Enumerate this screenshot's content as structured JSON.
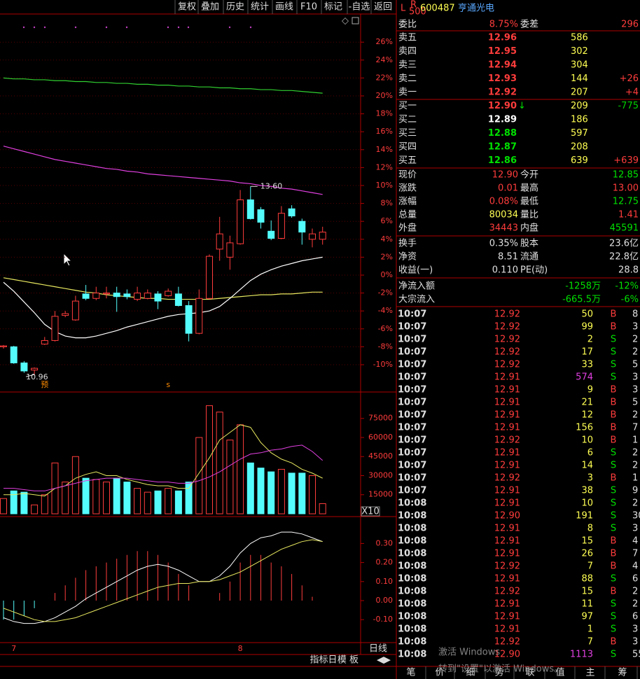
{
  "toolbar": {
    "buttons": [
      "复权",
      "叠加",
      "历史",
      "统计",
      "画线",
      "F10",
      "标记",
      "-自选",
      "返回"
    ]
  },
  "header": {
    "market": "L",
    "board_top": "R",
    "board_bottom": "500",
    "code": "600487",
    "name": "亨通光电"
  },
  "quote": {
    "ratio": [
      "委比",
      "8.75%",
      "委差",
      "296"
    ],
    "order_book": [
      {
        "label": "卖五",
        "price": "12.96",
        "volume": "586",
        "color": "#ff3c3c"
      },
      {
        "label": "卖四",
        "price": "12.95",
        "volume": "302",
        "color": "#ff3c3c"
      },
      {
        "label": "卖三",
        "price": "12.94",
        "volume": "304",
        "color": "#ff3c3c"
      },
      {
        "label": "卖二",
        "price": "12.93",
        "volume": "144",
        "change": "+26",
        "color": "#ff3c3c",
        "change_color": "#ff3c3c"
      },
      {
        "label": "卖一",
        "price": "12.92",
        "volume": "207",
        "change": "+4",
        "color": "#ff3c3c",
        "change_color": "#ff3c3c"
      },
      {
        "label": "买一",
        "price": "12.90",
        "mark": "↓",
        "volume": "209",
        "change": "-775",
        "color": "#ff3c3c",
        "change_color": "#00d000"
      },
      {
        "label": "买二",
        "price": "12.89",
        "volume": "186",
        "color": "#ffffff"
      },
      {
        "label": "买三",
        "price": "12.88",
        "volume": "597",
        "color": "#00e000"
      },
      {
        "label": "买四",
        "price": "12.87",
        "volume": "208",
        "color": "#00e000"
      },
      {
        "label": "买五",
        "price": "12.86",
        "volume": "639",
        "change": "+639",
        "color": "#00e000",
        "change_color": "#ff3c3c"
      }
    ],
    "stats": [
      {
        "cells": [
          "现价",
          "12.90",
          "今开",
          "12.85"
        ],
        "colors": [
          "#ff3c3c",
          "#00e000"
        ]
      },
      {
        "cells": [
          "涨跌",
          "0.01",
          "最高",
          "13.00"
        ],
        "colors": [
          "#ff3c3c",
          "#ff3c3c"
        ]
      },
      {
        "cells": [
          "涨幅",
          "0.08%",
          "最低",
          "12.75"
        ],
        "colors": [
          "#ff3c3c",
          "#00e000"
        ]
      },
      {
        "cells": [
          "总量",
          "80034",
          "量比",
          "1.41"
        ],
        "colors": [
          "#ffff54",
          "#ff3c3c"
        ]
      },
      {
        "cells": [
          "外盘",
          "34443",
          "内盘",
          "45591"
        ],
        "colors": [
          "#ff3c3c",
          "#00e000"
        ]
      },
      {
        "cells": [
          "换手",
          "0.35%",
          "股本",
          "23.6亿"
        ],
        "colors": [
          "#e0e0e0",
          "#e0e0e0"
        ]
      },
      {
        "cells": [
          "净资",
          "8.51",
          "流通",
          "22.8亿"
        ],
        "colors": [
          "#e0e0e0",
          "#e0e0e0"
        ]
      },
      {
        "cells": [
          "收益(一)",
          "0.110",
          "PE(动)",
          "28.8"
        ],
        "colors": [
          "#e0e0e0",
          "#e0e0e0"
        ]
      }
    ],
    "flow": [
      [
        "净流入额",
        "-1258万",
        "-12%"
      ],
      [
        "大宗流入",
        "-665.5万",
        "-6%"
      ]
    ]
  },
  "trades": [
    [
      "10:07",
      "12.92",
      "50",
      "B",
      "8"
    ],
    [
      "10:07",
      "12.92",
      "99",
      "B",
      "3"
    ],
    [
      "10:07",
      "12.92",
      "2",
      "S",
      "2"
    ],
    [
      "10:07",
      "12.92",
      "17",
      "S",
      "2"
    ],
    [
      "10:07",
      "12.92",
      "33",
      "S",
      "5"
    ],
    [
      "10:07",
      "12.91",
      "574",
      "S",
      "3"
    ],
    [
      "10:07",
      "12.91",
      "9",
      "B",
      "3"
    ],
    [
      "10:07",
      "12.91",
      "21",
      "B",
      "5"
    ],
    [
      "10:07",
      "12.91",
      "12",
      "B",
      "2"
    ],
    [
      "10:07",
      "12.91",
      "156",
      "B",
      "7"
    ],
    [
      "10:07",
      "12.92",
      "10",
      "B",
      "1"
    ],
    [
      "10:07",
      "12.91",
      "6",
      "S",
      "2"
    ],
    [
      "10:07",
      "12.91",
      "14",
      "S",
      "2"
    ],
    [
      "10:07",
      "12.92",
      "3",
      "B",
      "1"
    ],
    [
      "10:07",
      "12.91",
      "38",
      "S",
      "9"
    ],
    [
      "10:08",
      "12.91",
      "10",
      "S",
      "2"
    ],
    [
      "10:08",
      "12.90",
      "191",
      "S",
      "30"
    ],
    [
      "10:08",
      "12.91",
      "8",
      "S",
      "3"
    ],
    [
      "10:08",
      "12.91",
      "15",
      "B",
      "4"
    ],
    [
      "10:08",
      "12.91",
      "26",
      "B",
      "7"
    ],
    [
      "10:08",
      "12.92",
      "7",
      "B",
      "4"
    ],
    [
      "10:08",
      "12.91",
      "88",
      "S",
      "6"
    ],
    [
      "10:08",
      "12.92",
      "15",
      "B",
      "2"
    ],
    [
      "10:08",
      "12.91",
      "11",
      "S",
      "2"
    ],
    [
      "10:08",
      "12.91",
      "97",
      "S",
      "6"
    ],
    [
      "10:08",
      "12.91",
      "1",
      "S",
      "3"
    ],
    [
      "10:08",
      "12.92",
      "7",
      "B",
      "3"
    ],
    [
      "10:08",
      "12.90",
      "1113",
      "S",
      "55"
    ]
  ],
  "big_trade_color": "#e040e0",
  "big_trades": [
    5,
    27
  ],
  "price_chart": {
    "up_color": "#ff3c3c",
    "down_color": "#54fcfc",
    "yticks": [
      {
        "value": -10,
        "label": "-10%"
      },
      {
        "value": -8,
        "label": "-8%"
      },
      {
        "value": -6,
        "label": "-6%"
      },
      {
        "value": -4,
        "label": "-4%"
      },
      {
        "value": -2,
        "label": "-2%"
      },
      {
        "value": 0,
        "label": "0%"
      },
      {
        "value": 2,
        "label": "2%"
      },
      {
        "value": 4,
        "label": "4%"
      },
      {
        "value": 6,
        "label": "6%"
      },
      {
        "value": 8,
        "label": "8%"
      },
      {
        "value": 10,
        "label": "10%"
      },
      {
        "value": 12,
        "label": "12%"
      },
      {
        "value": 14,
        "label": "14%"
      },
      {
        "value": 16,
        "label": "16%"
      },
      {
        "value": 18,
        "label": "18%"
      },
      {
        "value": 20,
        "label": "20%"
      },
      {
        "value": 22,
        "label": "22%"
      },
      {
        "value": 24,
        "label": "24%"
      },
      {
        "value": 26,
        "label": "26%"
      }
    ],
    "candles": [
      {
        "open": -8.0,
        "close": -7.9,
        "high": -7.8,
        "low": -8.2
      },
      {
        "open": -8.0,
        "close": -9.8,
        "high": -7.9,
        "low": -9.9,
        "x_label": "7"
      },
      {
        "open": -9.8,
        "close": -10.7,
        "high": -9.6,
        "low": -10.9
      },
      {
        "open": -10.6,
        "close": -10.4,
        "high": -10.3,
        "low": -11.1,
        "low_label": "10.96"
      },
      {
        "open": -7.7,
        "close": -7.3,
        "high": -6.9,
        "low": -7.8,
        "marker": "预"
      },
      {
        "open": -7.3,
        "close": -4.6,
        "high": -4.0,
        "low": -7.4
      },
      {
        "open": -4.5,
        "close": -4.3,
        "high": -4.0,
        "low": -4.7
      },
      {
        "open": -5.0,
        "close": -2.9,
        "high": -2.3,
        "low": -5.1
      },
      {
        "open": -2.1,
        "close": -2.6,
        "high": -1.1,
        "low": -2.8
      },
      {
        "open": -2.6,
        "close": -2.0,
        "high": -1.3,
        "low": -2.8
      },
      {
        "open": -2.1,
        "close": -2.0,
        "high": -1.3,
        "low": -2.6
      },
      {
        "open": -2.0,
        "close": -2.4,
        "high": -1.3,
        "low": -4.1
      },
      {
        "open": -2.1,
        "close": -2.4,
        "high": -1.6,
        "low": -2.7
      },
      {
        "open": -2.7,
        "close": -2.0,
        "high": -1.3,
        "low": -2.9
      },
      {
        "open": -2.6,
        "close": -2.0,
        "high": -1.6,
        "low": -2.7
      },
      {
        "open": -2.1,
        "close": -2.9,
        "high": -1.8,
        "low": -3.8
      },
      {
        "open": -2.3,
        "close": -1.8,
        "high": -1.5,
        "low": -2.4,
        "marker": "s"
      },
      {
        "open": -2.1,
        "close": -3.4,
        "high": -1.3,
        "low": -3.5
      },
      {
        "open": -3.4,
        "close": -6.5,
        "high": -2.9,
        "low": -7.4
      },
      {
        "open": -6.5,
        "close": -2.6,
        "high": -1.6,
        "low": -6.6
      },
      {
        "open": -2.6,
        "close": 2.1,
        "high": 2.3,
        "low": -2.7
      },
      {
        "open": 2.9,
        "close": 4.6,
        "high": 6.5,
        "low": 1.6
      },
      {
        "open": 2.0,
        "close": 3.6,
        "high": 4.4,
        "low": 0.6
      },
      {
        "open": 3.5,
        "close": 8.4,
        "high": 9.5,
        "low": 3.4,
        "x_label": "8"
      },
      {
        "open": 8.4,
        "close": 6.3,
        "high": 9.9,
        "low": 6.2,
        "high_label": "13.60"
      },
      {
        "open": 7.3,
        "close": 5.9,
        "high": 7.6,
        "low": 5.2
      },
      {
        "open": 4.9,
        "close": 4.1,
        "high": 6.1,
        "low": 3.9
      },
      {
        "open": 4.1,
        "close": 6.9,
        "high": 7.7,
        "low": 4.0
      },
      {
        "open": 7.4,
        "close": 6.6,
        "high": 7.8,
        "low": 6.4
      },
      {
        "open": 6.0,
        "close": 4.8,
        "high": 6.3,
        "low": 3.4
      },
      {
        "open": 4.0,
        "close": 4.6,
        "high": 5.2,
        "low": 3.1
      },
      {
        "open": 4.0,
        "close": 4.8,
        "high": 5.4,
        "low": 3.4
      }
    ],
    "ma_lines": [
      {
        "color": "#30d030",
        "values": [
          22.0,
          21.9,
          21.9,
          21.8,
          21.8,
          21.7,
          21.7,
          21.6,
          21.6,
          21.5,
          21.5,
          21.4,
          21.4,
          21.3,
          21.3,
          21.2,
          21.2,
          21.1,
          21.1,
          21.0,
          21.0,
          20.9,
          20.9,
          20.8,
          20.8,
          20.7,
          20.7,
          20.6,
          20.6,
          20.5,
          20.4,
          20.3
        ]
      },
      {
        "color": "#e040e0",
        "values": [
          14.4,
          14.1,
          13.8,
          13.5,
          13.2,
          12.9,
          12.7,
          12.5,
          12.3,
          12.1,
          11.9,
          11.8,
          11.6,
          11.5,
          11.3,
          11.2,
          11.1,
          11.0,
          10.9,
          10.8,
          10.7,
          10.6,
          10.5,
          10.3,
          10.2,
          10.0,
          9.9,
          9.7,
          9.6,
          9.4,
          9.2,
          9.0
        ]
      },
      {
        "color": "#e8e860",
        "values": [
          -0.3,
          -0.5,
          -0.7,
          -0.9,
          -1.1,
          -1.3,
          -1.5,
          -1.7,
          -1.9,
          -2.0,
          -2.2,
          -2.3,
          -2.4,
          -2.5,
          -2.6,
          -2.6,
          -2.7,
          -2.7,
          -2.7,
          -2.7,
          -2.7,
          -2.6,
          -2.5,
          -2.4,
          -2.3,
          -2.2,
          -2.2,
          -2.1,
          -2.1,
          -2.0,
          -1.9,
          -1.9
        ]
      },
      {
        "color": "#ffffff",
        "values": [
          -0.8,
          -1.8,
          -3.0,
          -4.2,
          -5.5,
          -6.3,
          -6.8,
          -7.0,
          -7.0,
          -6.8,
          -6.5,
          -6.2,
          -5.8,
          -5.5,
          -5.2,
          -4.9,
          -4.6,
          -4.4,
          -4.3,
          -4.2,
          -4.0,
          -3.5,
          -2.6,
          -1.6,
          -0.6,
          0.1,
          0.6,
          1.0,
          1.3,
          1.6,
          1.8,
          2.0
        ]
      }
    ]
  },
  "volume_chart": {
    "scale_label": "X10",
    "yticks": [
      15000,
      30000,
      45000,
      60000,
      75000
    ],
    "values": [
      12000,
      18000,
      17000,
      7000,
      15000,
      40000,
      25000,
      45000,
      28000,
      27000,
      25000,
      28000,
      25000,
      20000,
      17000,
      18000,
      20000,
      18000,
      25000,
      60000,
      85000,
      80000,
      58000,
      70000,
      40000,
      36000,
      33000,
      35000,
      32000,
      32000,
      30000,
      8000
    ],
    "ma_lines": [
      {
        "color": "#e8e860",
        "values": [
          15000,
          15000,
          16000,
          15000,
          14000,
          20000,
          22000,
          28000,
          31000,
          33000,
          30000,
          30000,
          27000,
          25000,
          23000,
          22000,
          22000,
          20000,
          20000,
          32000,
          44000,
          58000,
          64000,
          70000,
          68000,
          56000,
          48000,
          43000,
          40000,
          35000,
          32000,
          28000
        ]
      },
      {
        "color": "#e040e0",
        "values": [
          20000,
          20000,
          19000,
          18000,
          18000,
          20000,
          22000,
          24000,
          26000,
          27000,
          28000,
          28000,
          28000,
          27000,
          26000,
          25000,
          25000,
          24000,
          24000,
          26000,
          29000,
          33000,
          38000,
          43000,
          47000,
          48000,
          50000,
          51000,
          53000,
          54000,
          49000,
          42000
        ]
      }
    ]
  },
  "macd_chart": {
    "yticks": [
      {
        "value": -0.1,
        "label": "-0.10"
      },
      {
        "value": 0,
        "label": "0.00"
      },
      {
        "value": 0.1,
        "label": "0.10"
      },
      {
        "value": 0.2,
        "label": "0.20"
      },
      {
        "value": 0.3,
        "label": "0.30"
      }
    ],
    "values": [
      -0.1,
      -0.1,
      -0.08,
      -0.04,
      0.0,
      0.04,
      0.08,
      0.12,
      0.16,
      0.18,
      0.2,
      0.22,
      0.24,
      0.26,
      0.26,
      0.24,
      0.2,
      0.14,
      0.08,
      0.0,
      0.0,
      0.04,
      0.1,
      0.2,
      0.24,
      0.24,
      0.2,
      0.18,
      0.14,
      0.08,
      0.02,
      0.0
    ],
    "dif": [
      -0.09,
      -0.11,
      -0.12,
      -0.12,
      -0.11,
      -0.09,
      -0.06,
      -0.03,
      0.01,
      0.04,
      0.07,
      0.1,
      0.13,
      0.16,
      0.18,
      0.19,
      0.18,
      0.16,
      0.13,
      0.1,
      0.1,
      0.13,
      0.18,
      0.25,
      0.3,
      0.33,
      0.34,
      0.36,
      0.36,
      0.35,
      0.33,
      0.31
    ],
    "dea": [
      -0.04,
      -0.06,
      -0.08,
      -0.1,
      -0.11,
      -0.11,
      -0.1,
      -0.09,
      -0.07,
      -0.05,
      -0.03,
      -0.01,
      0.01,
      0.03,
      0.05,
      0.07,
      0.08,
      0.09,
      0.09,
      0.1,
      0.1,
      0.11,
      0.13,
      0.15,
      0.18,
      0.21,
      0.24,
      0.27,
      0.29,
      0.31,
      0.32,
      0.31
    ]
  },
  "axis_bar": {
    "period": "日线"
  },
  "bottom_bar": {
    "buttons": [
      "指标日",
      "模 板",
      "◀",
      "▶"
    ]
  },
  "tabs": [
    "笔",
    "价",
    "细",
    "势",
    "联",
    "值",
    "主",
    "筹"
  ],
  "watermark": {
    "title": "激活 Windows",
    "subtitle": "转到\"设置\"以激活 Windows。"
  }
}
